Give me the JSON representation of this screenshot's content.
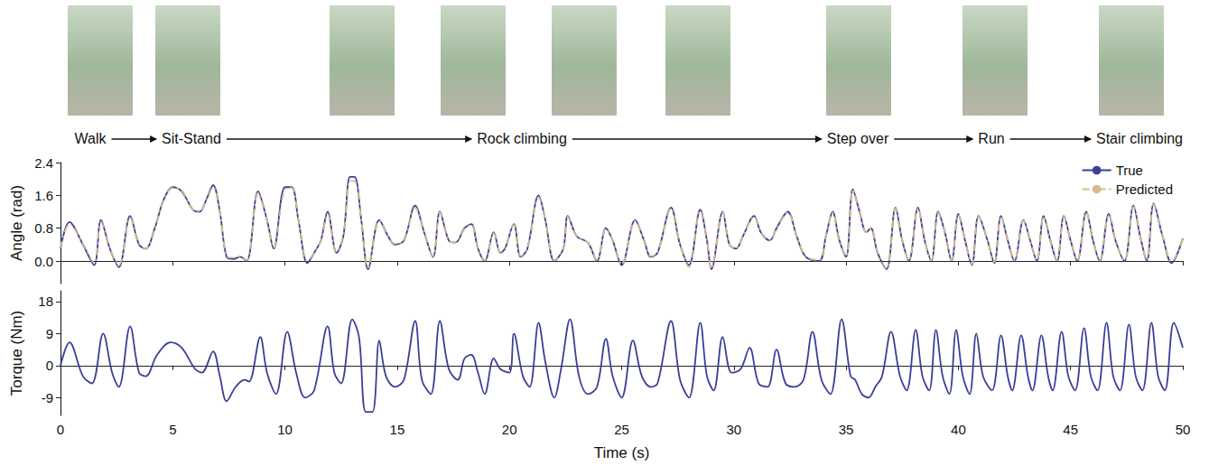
{
  "activities": [
    "Walk",
    "Sit-Stand",
    "Rock climbing",
    "Step over",
    "Run",
    "Stair climbing"
  ],
  "chart_data": [
    {
      "type": "line",
      "ylabel": "Angle (rad)",
      "xlim": [
        0,
        50
      ],
      "xticks": [
        0,
        5,
        10,
        15,
        20,
        25,
        30,
        35,
        40,
        45,
        50
      ],
      "ylim": [
        -0.55,
        2.4
      ],
      "yticks": [
        {
          "value": 0,
          "label": "0.0"
        },
        {
          "value": 0.8,
          "label": "0.8"
        },
        {
          "value": 1.6,
          "label": "1.6"
        },
        {
          "value": 2.4,
          "label": "2.4"
        }
      ],
      "tick_labels": "y",
      "grid": false,
      "legend": "upper right",
      "x": [
        0,
        0.4,
        1.0,
        1.5,
        1.8,
        2.2,
        2.6,
        3.1,
        3.5,
        3.8,
        4.2,
        4.6,
        5.0,
        5.4,
        5.9,
        6.2,
        6.5,
        6.8,
        7.1,
        7.4,
        7.7,
        8.0,
        8.3,
        8.8,
        9.2,
        9.5,
        10.0,
        10.3,
        10.6,
        11.0,
        11.3,
        11.6,
        11.9,
        12.3,
        12.6,
        12.9,
        13.1,
        13.4,
        13.7,
        14.2,
        14.6,
        14.9,
        15.3,
        15.8,
        16.2,
        16.6,
        16.9,
        17.3,
        17.6,
        18.0,
        18.3,
        18.6,
        18.9,
        19.3,
        19.6,
        19.8,
        20.2,
        20.5,
        20.8,
        21.3,
        21.6,
        22.0,
        22.4,
        22.6,
        23.0,
        23.5,
        23.9,
        24.3,
        24.6,
        25.0,
        25.6,
        26.0,
        26.3,
        26.6,
        27.2,
        27.6,
        28.0,
        28.5,
        28.8,
        29.0,
        29.5,
        29.8,
        30.1,
        30.4,
        30.9,
        31.2,
        31.6,
        31.9,
        32.4,
        32.8,
        33.2,
        33.8,
        34.1,
        34.4,
        34.7,
        35.0,
        35.3,
        35.6,
        35.9,
        36.1,
        36.4,
        36.8,
        37.2,
        37.5,
        37.8,
        38.2,
        38.5,
        38.8,
        39.1,
        39.4,
        39.7,
        40.0,
        40.3,
        40.6,
        40.9,
        41.3,
        41.6,
        41.9,
        42.2,
        42.5,
        42.9,
        43.2,
        43.5,
        43.8,
        44.1,
        44.4,
        44.7,
        45.0,
        45.3,
        45.7,
        46.0,
        46.3,
        46.7,
        47.0,
        47.4,
        47.8,
        48.1,
        48.4,
        48.7,
        49.1,
        49.5,
        50.0
      ],
      "series": [
        {
          "name": "True",
          "color": "#3b3f98",
          "line_style": "solid",
          "values": [
            0.3,
            0.95,
            0.4,
            -0.1,
            1.0,
            0.3,
            -0.15,
            1.1,
            0.4,
            0.3,
            0.8,
            1.5,
            1.8,
            1.7,
            1.25,
            1.2,
            1.5,
            1.85,
            1.2,
            0.1,
            0.05,
            0.1,
            0.0,
            1.7,
            1.0,
            0.3,
            1.8,
            1.8,
            1.0,
            -0.05,
            0.2,
            0.5,
            1.2,
            0.2,
            0.6,
            2.05,
            2.05,
            1.0,
            -0.2,
            1.0,
            0.6,
            0.4,
            0.5,
            1.35,
            0.7,
            0.1,
            1.2,
            0.5,
            0.45,
            0.8,
            0.9,
            0.3,
            0.0,
            0.7,
            0.2,
            0.3,
            0.9,
            0.1,
            0.3,
            1.6,
            1.0,
            0.0,
            0.3,
            1.1,
            0.6,
            0.45,
            0.0,
            0.8,
            0.5,
            -0.1,
            1.0,
            0.5,
            0.1,
            0.2,
            1.3,
            0.4,
            -0.1,
            1.25,
            0.5,
            -0.2,
            1.2,
            0.4,
            0.3,
            0.6,
            1.1,
            0.7,
            0.5,
            0.8,
            1.2,
            0.6,
            0.1,
            0.0,
            0.6,
            1.2,
            0.5,
            0.1,
            1.75,
            1.2,
            0.7,
            0.8,
            0.2,
            -0.2,
            1.3,
            0.5,
            0.0,
            1.3,
            0.5,
            0.0,
            1.2,
            0.7,
            0.0,
            1.15,
            0.5,
            -0.1,
            1.1,
            0.5,
            -0.05,
            1.1,
            0.5,
            0.0,
            1.0,
            0.5,
            0.0,
            1.1,
            0.5,
            0.0,
            1.1,
            0.5,
            0.0,
            1.2,
            0.5,
            0.0,
            1.15,
            0.5,
            0.0,
            1.35,
            0.6,
            0.0,
            1.4,
            0.6,
            -0.05,
            0.55
          ]
        },
        {
          "name": "Predicted",
          "color": "#d8b98a",
          "line_style": "dashdot",
          "values": [
            0.32,
            0.9,
            0.42,
            -0.05,
            0.95,
            0.3,
            -0.1,
            1.05,
            0.42,
            0.3,
            0.78,
            1.48,
            1.78,
            1.72,
            1.25,
            1.2,
            1.48,
            1.8,
            1.2,
            0.12,
            0.08,
            0.1,
            0.02,
            1.65,
            1.0,
            0.32,
            1.75,
            1.78,
            1.0,
            0.0,
            0.2,
            0.5,
            1.15,
            0.22,
            0.6,
            1.95,
            1.95,
            1.0,
            -0.15,
            0.98,
            0.6,
            0.42,
            0.5,
            1.3,
            0.7,
            0.12,
            1.18,
            0.5,
            0.45,
            0.78,
            0.88,
            0.3,
            0.02,
            0.68,
            0.22,
            0.3,
            0.88,
            0.12,
            0.3,
            1.55,
            1.0,
            0.02,
            0.3,
            1.08,
            0.6,
            0.45,
            0.02,
            0.78,
            0.5,
            -0.08,
            0.98,
            0.5,
            0.12,
            0.2,
            1.28,
            0.4,
            -0.15,
            1.22,
            0.5,
            -0.18,
            1.18,
            0.4,
            0.3,
            0.6,
            1.08,
            0.7,
            0.5,
            0.78,
            1.18,
            0.6,
            0.12,
            0.02,
            0.6,
            1.18,
            0.5,
            0.12,
            1.72,
            1.2,
            0.7,
            0.8,
            0.22,
            -0.18,
            1.28,
            0.5,
            0.02,
            1.28,
            0.5,
            0.02,
            1.18,
            0.7,
            0.02,
            1.12,
            0.5,
            -0.08,
            1.08,
            0.5,
            -0.02,
            1.08,
            0.5,
            0.02,
            0.98,
            0.5,
            0.02,
            1.08,
            0.5,
            0.02,
            1.08,
            0.5,
            0.02,
            1.18,
            0.5,
            0.02,
            1.12,
            0.5,
            0.02,
            1.32,
            0.6,
            0.02,
            1.38,
            0.6,
            -0.02,
            0.55
          ]
        }
      ]
    },
    {
      "type": "line",
      "xlabel": "Time (s)",
      "ylabel": "Torque (Nm)",
      "xlim": [
        0,
        50
      ],
      "xticks": [
        0,
        5,
        10,
        15,
        20,
        25,
        30,
        35,
        40,
        45,
        50
      ],
      "ylim": [
        -14,
        21
      ],
      "yticks": [
        -9,
        0,
        9,
        18
      ],
      "grid": false,
      "x": [
        0,
        0.4,
        1.0,
        1.4,
        1.9,
        2.3,
        2.6,
        3.1,
        3.5,
        3.8,
        4.3,
        4.9,
        5.4,
        6.0,
        6.3,
        6.8,
        7.1,
        7.4,
        7.8,
        8.2,
        8.4,
        8.9,
        9.2,
        9.6,
        10.1,
        10.5,
        10.9,
        11.3,
        11.9,
        12.2,
        12.5,
        13.0,
        13.3,
        13.6,
        13.9,
        14.2,
        14.5,
        14.9,
        15.3,
        15.8,
        16.1,
        16.5,
        16.9,
        17.3,
        17.7,
        18.0,
        18.3,
        18.6,
        18.9,
        19.3,
        19.6,
        20.0,
        20.2,
        20.6,
        20.9,
        21.3,
        21.6,
        22.0,
        22.3,
        22.7,
        23.1,
        23.5,
        23.9,
        24.3,
        24.6,
        25.0,
        25.5,
        25.9,
        26.3,
        26.6,
        27.2,
        27.6,
        28.0,
        28.5,
        28.8,
        29.1,
        29.5,
        29.9,
        30.3,
        30.7,
        31.1,
        31.5,
        31.9,
        32.3,
        32.7,
        33.1,
        33.5,
        33.9,
        34.3,
        34.8,
        35.2,
        35.4,
        35.7,
        36.0,
        36.3,
        36.6,
        37.0,
        37.4,
        37.7,
        38.1,
        38.4,
        38.7,
        39.0,
        39.3,
        39.6,
        39.9,
        40.2,
        40.5,
        40.8,
        41.1,
        41.5,
        41.9,
        42.2,
        42.4,
        42.8,
        43.1,
        43.3,
        43.7,
        44.0,
        44.2,
        44.6,
        44.9,
        45.2,
        45.6,
        45.9,
        46.2,
        46.6,
        46.9,
        47.2,
        47.6,
        47.9,
        48.2,
        48.6,
        48.9,
        49.2,
        49.6,
        50.0
      ],
      "series": [
        {
          "color": "#3b3f98",
          "line_style": "solid",
          "values": [
            0,
            6.5,
            -3,
            -5,
            9,
            -2,
            -6,
            11,
            -2,
            -3,
            3,
            6.5,
            5,
            -1,
            -2,
            4,
            -3,
            -10,
            -6,
            -4,
            -4.5,
            8,
            -2,
            -8,
            9.5,
            -2,
            -9,
            -7,
            11,
            -2,
            -5,
            13,
            8,
            -13,
            -13,
            7,
            -3,
            -6,
            -4,
            12.5,
            -4,
            -8,
            12.5,
            -1,
            -4,
            2,
            3,
            -2,
            -8,
            2,
            -1,
            -2,
            9,
            -3,
            -6,
            12,
            1,
            -9,
            -1,
            13,
            -3,
            -8,
            -6,
            7.5,
            -3,
            -9,
            7,
            -3,
            -6,
            -5,
            12.5,
            -4,
            -9,
            12,
            -3,
            -7,
            8,
            -2,
            -1,
            5,
            -5,
            -6,
            4.5,
            -5,
            -6,
            -4,
            9.5,
            -4,
            -8,
            13,
            -3,
            -4,
            -8,
            -9,
            -6,
            -3,
            9.5,
            -3,
            -7,
            10,
            -3,
            -7,
            10,
            -3,
            -8,
            10,
            -3,
            -8,
            9,
            -3,
            -7,
            8.5,
            -3,
            -7,
            8.5,
            -3,
            -7,
            8.5,
            -3,
            -7,
            9.5,
            -3,
            -7,
            10.5,
            -3,
            -7,
            12,
            -3,
            -7,
            11.5,
            -3,
            -7,
            12,
            -3,
            -7,
            12,
            5
          ]
        }
      ]
    }
  ]
}
